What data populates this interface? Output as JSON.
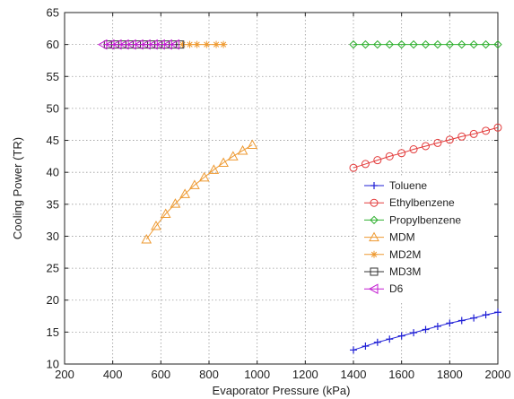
{
  "chart_data": {
    "type": "line",
    "title": "",
    "xlabel": "Evaporator Pressure (kPa)",
    "ylabel": "Cooling Power (TR)",
    "xlim": [
      200,
      2000
    ],
    "ylim": [
      10,
      65
    ],
    "xticks": [
      200,
      400,
      600,
      800,
      1000,
      1200,
      1400,
      1600,
      1800,
      2000
    ],
    "yticks": [
      10,
      15,
      20,
      25,
      30,
      35,
      40,
      45,
      50,
      55,
      60,
      65
    ],
    "grid": true,
    "legend_position": "lower-right",
    "series": [
      {
        "name": "Toluene",
        "color": "#1f1fd6",
        "marker": "plus",
        "x": [
          1400,
          1450,
          1500,
          1550,
          1600,
          1650,
          1700,
          1750,
          1800,
          1850,
          1900,
          1950,
          2000
        ],
        "y": [
          12.2,
          12.8,
          13.4,
          13.9,
          14.4,
          14.9,
          15.4,
          15.9,
          16.4,
          16.8,
          17.2,
          17.7,
          18.1
        ]
      },
      {
        "name": "Ethylbenzene",
        "color": "#e33b3b",
        "marker": "circle",
        "x": [
          1400,
          1450,
          1500,
          1550,
          1600,
          1650,
          1700,
          1750,
          1800,
          1850,
          1900,
          1950,
          2000
        ],
        "y": [
          40.7,
          41.3,
          41.9,
          42.5,
          43.0,
          43.6,
          44.1,
          44.6,
          45.1,
          45.6,
          46.0,
          46.5,
          47.0
        ]
      },
      {
        "name": "Propylbenzene",
        "color": "#2fb02f",
        "marker": "diamond",
        "x": [
          1400,
          1450,
          1500,
          1550,
          1600,
          1650,
          1700,
          1750,
          1800,
          1850,
          1900,
          1950,
          2000
        ],
        "y": [
          60,
          60,
          60,
          60,
          60,
          60,
          60,
          60,
          60,
          60,
          60,
          60,
          60
        ]
      },
      {
        "name": "MDM",
        "color": "#ee9a32",
        "marker": "triangle",
        "x": [
          540,
          580,
          620,
          660,
          700,
          740,
          780,
          820,
          860,
          900,
          940,
          980
        ],
        "y": [
          29.5,
          31.6,
          33.5,
          35.1,
          36.6,
          38.0,
          39.2,
          40.4,
          41.5,
          42.5,
          43.4,
          44.3
        ]
      },
      {
        "name": "MD2M",
        "color": "#ee9a32",
        "marker": "star",
        "x": [
          690,
          720,
          750,
          790,
          830,
          860
        ],
        "y": [
          60,
          60,
          60,
          60,
          60,
          60
        ]
      },
      {
        "name": "MD3M",
        "color": "#333333",
        "marker": "square",
        "x": [
          380,
          410,
          440,
          470,
          500,
          530,
          560,
          590,
          620,
          650,
          680
        ],
        "y": [
          60,
          60,
          60,
          60,
          60,
          60,
          60,
          60,
          60,
          60,
          60
        ]
      },
      {
        "name": "D6",
        "color": "#c21bd1",
        "marker": "triangle-left",
        "x": [
          360,
          390,
          420,
          450,
          480,
          510,
          540,
          570,
          600,
          630,
          660
        ],
        "y": [
          60,
          60,
          60,
          60,
          60,
          60,
          60,
          60,
          60,
          60,
          60
        ]
      }
    ]
  }
}
